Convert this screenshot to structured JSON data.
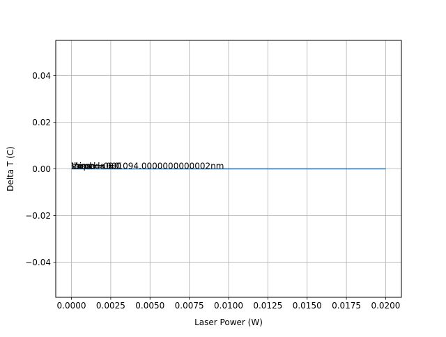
{
  "chart_data": {
    "type": "line",
    "title": "",
    "xlabel": "Laser Power (W)",
    "ylabel": "Delta T (C)",
    "xlim": [
      -0.001,
      0.021
    ],
    "ylim": [
      -0.055,
      0.055
    ],
    "xticks": [
      0.0,
      0.0025,
      0.005,
      0.0075,
      0.01,
      0.0125,
      0.015,
      0.0175,
      0.02
    ],
    "xtick_labels": [
      "0.0000",
      "0.0025",
      "0.0050",
      "0.0075",
      "0.0100",
      "0.0125",
      "0.0150",
      "0.0175",
      "0.0200"
    ],
    "yticks": [
      -0.04,
      -0.02,
      0.0,
      0.02,
      0.04
    ],
    "ytick_labels": [
      "−0.04",
      "−0.02",
      "0.00",
      "0.02",
      "0.04"
    ],
    "grid": true,
    "series": [
      {
        "color": "#1f77b4",
        "x": [
          0.0,
          0.02
        ],
        "y": [
          0.0,
          0.0
        ]
      }
    ],
    "annotations": [
      {
        "text": "Lambda = 1094.0000000000002nm",
        "x": 0.0,
        "y": 0.0
      },
      {
        "text": "Vmod = 0.0",
        "x": 0.0,
        "y": 0.0
      },
      {
        "text": "slope = 0.0",
        "x": 0.0,
        "y": 0.0
      },
      {
        "text": "Ibias = 0.0",
        "x": 0.0,
        "y": 0.0
      }
    ]
  }
}
